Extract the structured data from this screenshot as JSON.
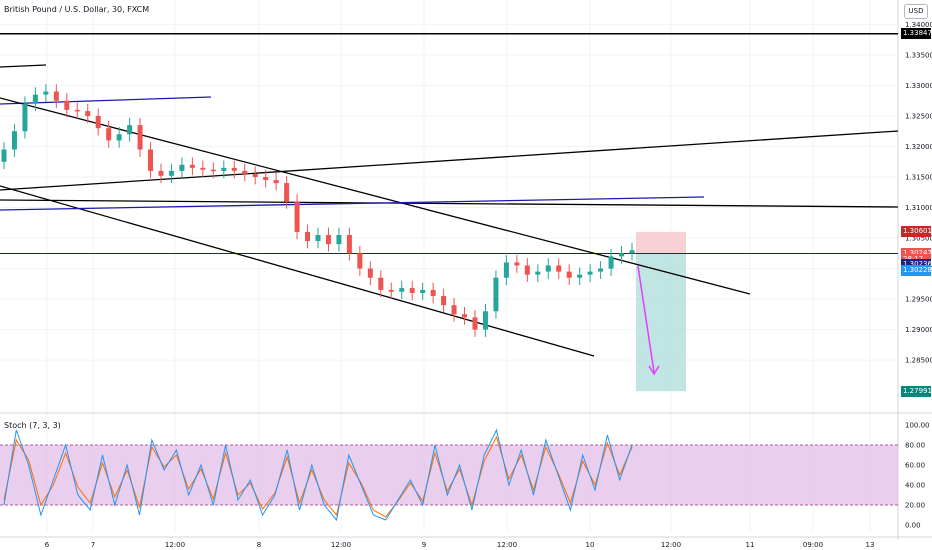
{
  "header": {
    "symbol_title": "British Pound / U.S. Dollar, 30, FXCM",
    "currency_button": "USD"
  },
  "indicator": {
    "label": "Stoch (7, 3, 3)"
  },
  "colors": {
    "up": "#26a69a",
    "down": "#ef5350",
    "trendline": "#000000",
    "blue_line": "#1a1aaa",
    "stoch_k": "#2196f3",
    "stoch_d": "#ff6d00",
    "stoch_band": "#e1bee7",
    "stop_zone": "#f5c6cb",
    "target_zone": "#b2dfdb",
    "arrow": "#e040fb"
  },
  "price_tags": [
    {
      "text": "1.33847",
      "bg": "#000000",
      "price": 1.33847
    },
    {
      "text": "1.30601",
      "bg": "#c62828",
      "price": 1.30601
    },
    {
      "text": "1.30247",
      "bg": "#ef5350",
      "price": 1.30247
    },
    {
      "text": "28:17",
      "bg": "#ef5350",
      "price": 1.30155
    },
    {
      "text": "1.30236",
      "bg": "#1a237e",
      "price": 1.3006
    },
    {
      "text": "1.30228",
      "bg": "#2196f3",
      "price": 1.2997
    },
    {
      "text": "1.27991",
      "bg": "#00897b",
      "price": 1.27991
    }
  ],
  "chart_data": [
    {
      "type": "candlestick",
      "title": "British Pound / U.S. Dollar, 30, FXCM",
      "x_ticks": [
        "6",
        "7",
        "12:00",
        "8",
        "12:00",
        "9",
        "12:00",
        "10",
        "12:00",
        "11",
        "09:00",
        "13"
      ],
      "y_ticks": [
        "1.34000",
        "1.33500",
        "1.33000",
        "1.32500",
        "1.32000",
        "1.31500",
        "1.31000",
        "1.30500",
        "1.30000",
        "1.29500",
        "1.29000",
        "1.28500"
      ],
      "ylim": [
        1.2765,
        1.344
      ],
      "close_series": [
        1.3195,
        1.3225,
        1.327,
        1.3285,
        1.329,
        1.3275,
        1.326,
        1.3258,
        1.325,
        1.323,
        1.321,
        1.322,
        1.3235,
        1.3195,
        1.316,
        1.3152,
        1.316,
        1.317,
        1.3165,
        1.3162,
        1.316,
        1.3165,
        1.316,
        1.3155,
        1.315,
        1.3145,
        1.314,
        1.311,
        1.306,
        1.3045,
        1.3055,
        1.304,
        1.3055,
        1.3025,
        1.3,
        1.2985,
        1.2965,
        1.2962,
        1.2968,
        1.296,
        1.2965,
        1.2955,
        1.294,
        1.2925,
        1.292,
        1.29,
        1.293,
        1.2985,
        1.301,
        1.3005,
        1.299,
        1.2995,
        1.3005,
        1.2995,
        1.2985,
        1.299,
        1.2995,
        1.3,
        1.302,
        1.3025,
        1.303
      ],
      "current_price": 1.30247,
      "stoch": {
        "name": "Stoch (7, 3, 3)",
        "ylim": [
          0,
          100
        ],
        "y_ticks": [
          "100.00",
          "80.00",
          "60.00",
          "40.00",
          "20.00",
          "0.00"
        ],
        "bands": [
          20,
          80
        ],
        "k": [
          20,
          95,
          60,
          10,
          45,
          80,
          30,
          15,
          70,
          20,
          60,
          10,
          85,
          55,
          75,
          30,
          60,
          20,
          80,
          25,
          45,
          10,
          30,
          75,
          15,
          60,
          20,
          5,
          70,
          40,
          10,
          5,
          25,
          45,
          20,
          80,
          30,
          60,
          15,
          70,
          95,
          40,
          75,
          30,
          85,
          50,
          15,
          70,
          35,
          90,
          45,
          80
        ],
        "d": [
          25,
          85,
          65,
          20,
          40,
          72,
          38,
          22,
          62,
          28,
          55,
          18,
          78,
          58,
          70,
          36,
          56,
          26,
          72,
          30,
          42,
          16,
          32,
          68,
          22,
          55,
          25,
          10,
          62,
          42,
          15,
          8,
          24,
          42,
          24,
          72,
          34,
          56,
          20,
          64,
          88,
          46,
          70,
          35,
          78,
          52,
          22,
          64,
          40,
          82,
          50,
          78
        ]
      },
      "annotations": {
        "horizontal_black": 1.33847,
        "horizontal_blue": 1.30247,
        "stop_loss": 1.30601,
        "entry": 1.30247,
        "take_profit": 1.27991
      }
    }
  ]
}
